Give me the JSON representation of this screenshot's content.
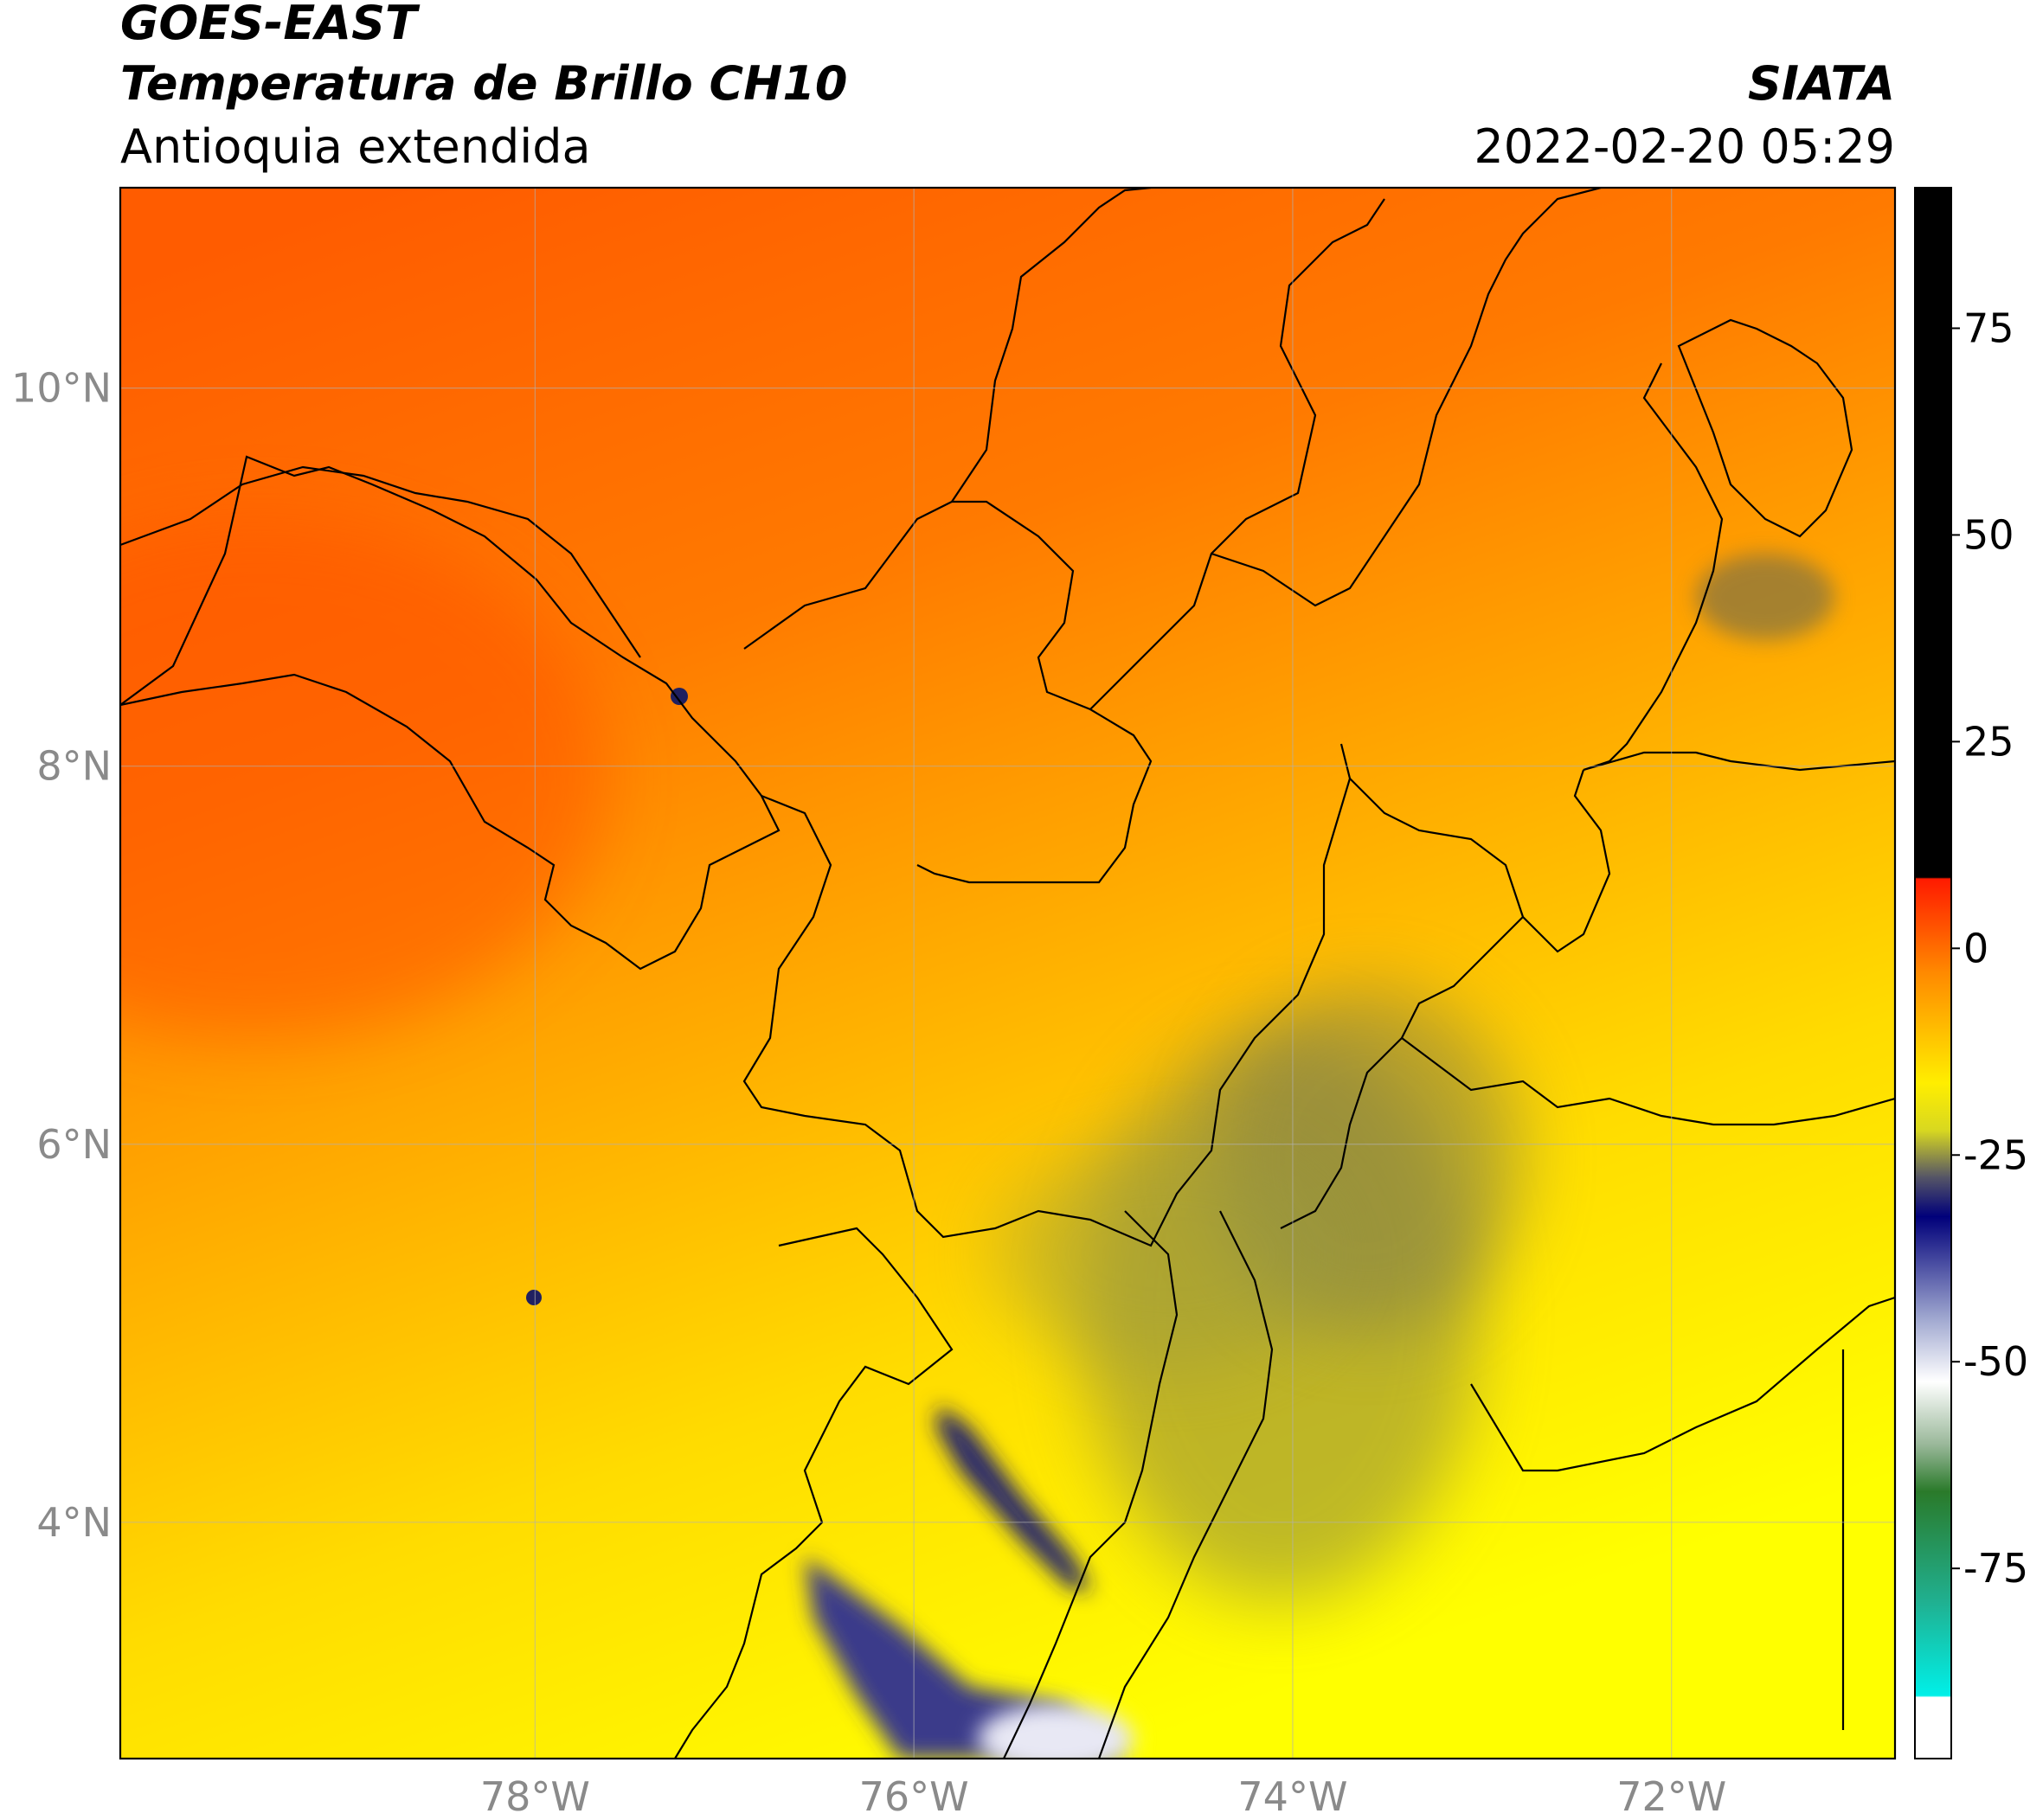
{
  "header": {
    "title_line1": "GOES-EAST",
    "title_line2": "Temperatura de Brillo CH10",
    "subtitle": "Antioquia extendida",
    "source": "SIATA",
    "datetime": "2022-02-20 05:29"
  },
  "map": {
    "lonlim": [
      -80.19,
      -70.82
    ],
    "latlim": [
      2.75,
      11.06
    ],
    "lonticks": [
      {
        "value": -78,
        "label": "78°W"
      },
      {
        "value": -76,
        "label": "76°W"
      },
      {
        "value": -74,
        "label": "74°W"
      },
      {
        "value": -72,
        "label": "72°W"
      }
    ],
    "latticks": [
      {
        "value": 10,
        "label": "10°N"
      },
      {
        "value": 8,
        "label": "8°N"
      },
      {
        "value": 6,
        "label": "6°N"
      },
      {
        "value": 4,
        "label": "4°N"
      }
    ],
    "grid": true
  },
  "colorbar": {
    "lim": [
      -98,
      92
    ],
    "ticks": [
      75,
      50,
      25,
      0,
      -25,
      -50,
      -75
    ]
  }
}
